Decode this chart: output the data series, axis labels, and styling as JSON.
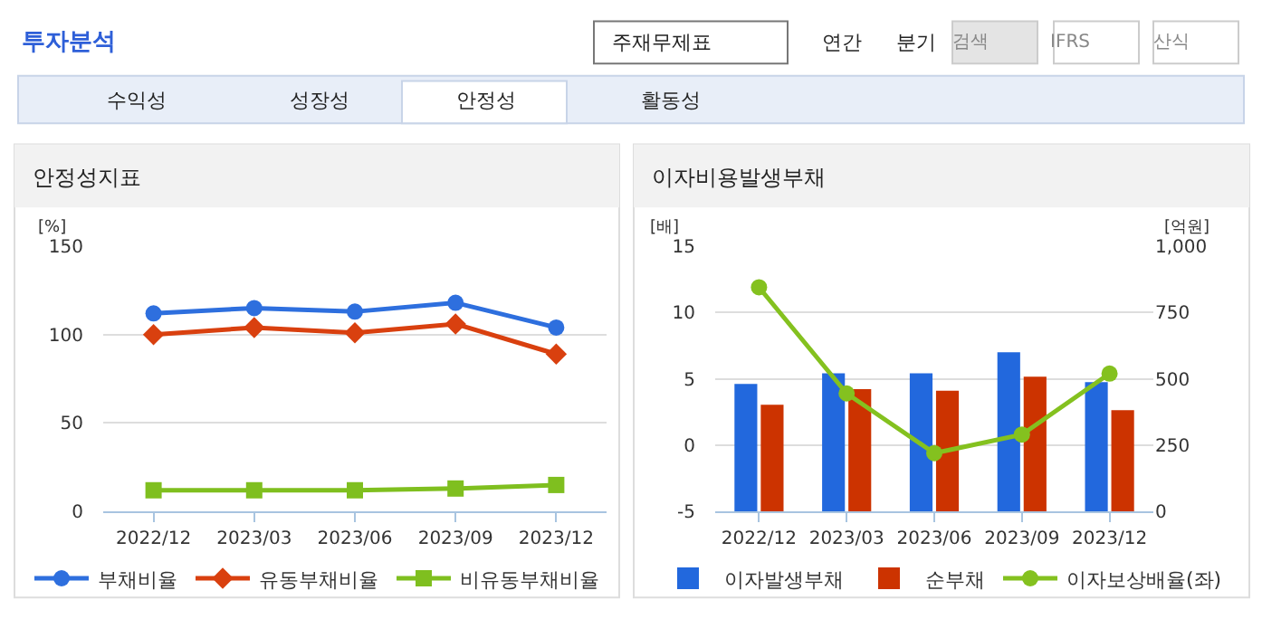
{
  "chart_data": [
    {
      "type": "other",
      "title": "투자분석",
      "annotations": [
        "주재무제표",
        "연간",
        "분기",
        "검색",
        "IFRS",
        "산식",
        "수익성",
        "성장성",
        "안정성",
        "활동성"
      ]
    },
    {
      "type": "line",
      "title": "안정성지표",
      "ylabel": "[%]",
      "categories": [
        "2022/12",
        "2023/03",
        "2023/06",
        "2023/09",
        "2023/12"
      ],
      "series": [
        {
          "name": "부채비율",
          "color": "#2e6fde",
          "marker": "circle",
          "values": [
            112,
            115,
            113,
            118,
            104
          ]
        },
        {
          "name": "유동부채비율",
          "color": "#d9400f",
          "marker": "diamond",
          "values": [
            100,
            104,
            101,
            106,
            89
          ]
        },
        {
          "name": "비유동부채비율",
          "color": "#7fbf1f",
          "marker": "square",
          "values": [
            12,
            12,
            12,
            13,
            15
          ]
        }
      ],
      "ylim": [
        0,
        150
      ],
      "yticks": [
        0,
        50,
        100,
        150
      ],
      "grid": "y",
      "legend": "bottom"
    },
    {
      "type": "bar",
      "title": "이자비용발생부채",
      "ylabel": "[배]",
      "y2label": "[억원]",
      "categories": [
        "2022/12",
        "2023/03",
        "2023/06",
        "2023/09",
        "2023/12"
      ],
      "series": [
        {
          "name": "이자발생부채",
          "color": "#2268dd",
          "axis": "y2",
          "values": [
            481,
            521,
            521,
            600,
            488
          ]
        },
        {
          "name": "순부채",
          "color": "#cc3300",
          "axis": "y2",
          "values": [
            402,
            461,
            455,
            508,
            382
          ]
        },
        {
          "name": "이자보상배율(좌)",
          "type": "line",
          "marker": "circle",
          "color": "#84c11f",
          "values": [
            11.9,
            3.9,
            -0.6,
            0.8,
            5.4
          ]
        }
      ],
      "ylim": [
        -5,
        15
      ],
      "yticks": [
        -5,
        0,
        5,
        10,
        15
      ],
      "y2lim": [
        0,
        1000
      ],
      "y2ticks": [
        0,
        250,
        500,
        750,
        {
          "value": 1000,
          "label": "1,000"
        }
      ],
      "grid": "y",
      "legend": "bottom"
    }
  ]
}
